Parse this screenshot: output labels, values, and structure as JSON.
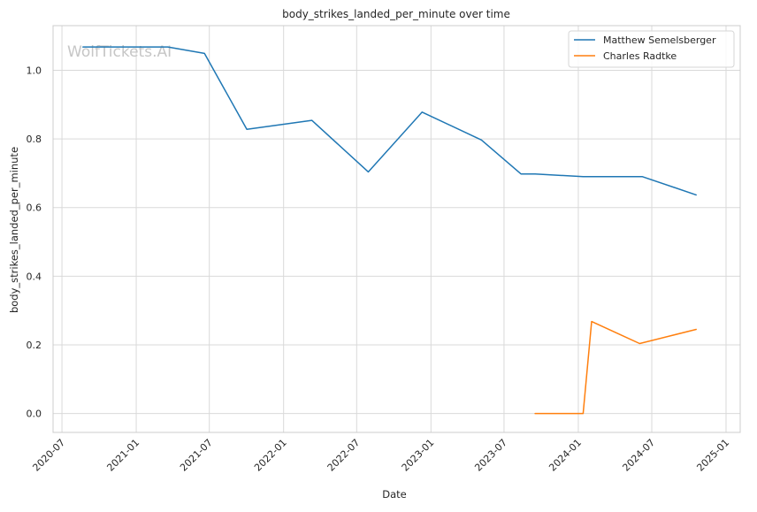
{
  "watermark": "WolfTickets.AI",
  "chart_data": {
    "type": "line",
    "title": "body_strikes_landed_per_minute over time",
    "xlabel": "Date",
    "ylabel": "body_strikes_landed_per_minute",
    "x_ticks": [
      "2020-07",
      "2021-01",
      "2021-07",
      "2022-01",
      "2022-07",
      "2023-01",
      "2023-07",
      "2024-01",
      "2024-07",
      "2025-01"
    ],
    "y_ticks": [
      "0.0",
      "0.2",
      "0.4",
      "0.6",
      "0.8",
      "1.0"
    ],
    "xlim": [
      "2020-06-09",
      "2025-02-05"
    ],
    "ylim": [
      -0.055,
      1.13
    ],
    "grid": true,
    "legend_position": "top-right",
    "series": [
      {
        "name": "Matthew Semelsberger",
        "color": "#1f77b4",
        "points": [
          {
            "x": "2020-08-22",
            "y": 1.068
          },
          {
            "x": "2021-03-20",
            "y": 1.068
          },
          {
            "x": "2021-06-19",
            "y": 1.049
          },
          {
            "x": "2021-10-02",
            "y": 0.828
          },
          {
            "x": "2022-03-12",
            "y": 0.854
          },
          {
            "x": "2022-07-30",
            "y": 0.704
          },
          {
            "x": "2022-12-10",
            "y": 0.878
          },
          {
            "x": "2023-05-06",
            "y": 0.797
          },
          {
            "x": "2023-08-12",
            "y": 0.698
          },
          {
            "x": "2023-09-16",
            "y": 0.698
          },
          {
            "x": "2024-01-13",
            "y": 0.69
          },
          {
            "x": "2024-06-08",
            "y": 0.69
          },
          {
            "x": "2024-10-19",
            "y": 0.637
          }
        ]
      },
      {
        "name": "Charles Radtke",
        "color": "#ff7f0e",
        "points": [
          {
            "x": "2023-09-16",
            "y": 0.0
          },
          {
            "x": "2024-01-13",
            "y": 0.0
          },
          {
            "x": "2024-02-03",
            "y": 0.268
          },
          {
            "x": "2024-06-01",
            "y": 0.204
          },
          {
            "x": "2024-10-19",
            "y": 0.245
          }
        ]
      }
    ]
  }
}
